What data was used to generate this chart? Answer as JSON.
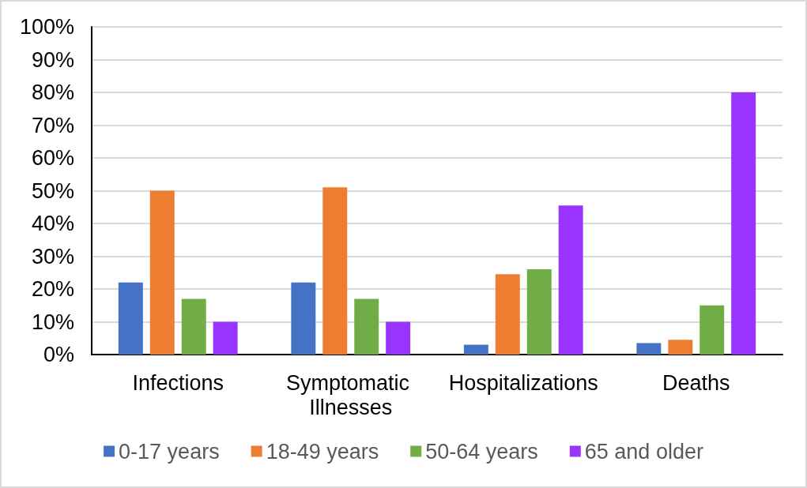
{
  "chart_data": {
    "type": "bar",
    "categories": [
      "Infections",
      "Symptomatic Illnesses",
      "Hospitalizations",
      "Deaths"
    ],
    "series": [
      {
        "name": "0-17 years",
        "color": "#4472c4",
        "values": [
          22,
          22,
          3,
          3.5
        ]
      },
      {
        "name": "18-49 years",
        "color": "#ed7d31",
        "values": [
          50,
          51,
          24.5,
          4.5
        ]
      },
      {
        "name": "50-64 years",
        "color": "#70ad47",
        "values": [
          17,
          17,
          26,
          15
        ]
      },
      {
        "name": "65 and older",
        "color": "#9933ff",
        "values": [
          10,
          10,
          45.5,
          80
        ]
      }
    ],
    "ylim": [
      0,
      100
    ],
    "yticks": [
      {
        "value": 0,
        "label": "0%"
      },
      {
        "value": 10,
        "label": "10%"
      },
      {
        "value": 20,
        "label": "20%"
      },
      {
        "value": 30,
        "label": "30%"
      },
      {
        "value": 40,
        "label": "40%"
      },
      {
        "value": 50,
        "label": "50%"
      },
      {
        "value": 60,
        "label": "60%"
      },
      {
        "value": 70,
        "label": "70%"
      },
      {
        "value": 80,
        "label": "80%"
      },
      {
        "value": 90,
        "label": "90%"
      },
      {
        "value": 100,
        "label": "100%"
      }
    ],
    "grid": "y",
    "legend": "bottom"
  }
}
